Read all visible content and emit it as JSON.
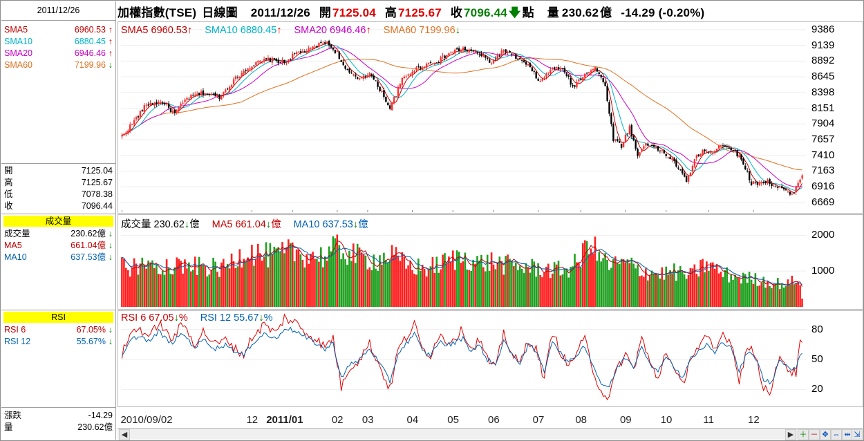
{
  "left_panel": {
    "date": "2011/12/26",
    "sma": [
      {
        "label": "SMA5",
        "value": "6960.53",
        "color": "#c00000",
        "dir": "up"
      },
      {
        "label": "SMA10",
        "value": "6880.45",
        "color": "#00b4c8",
        "dir": "up"
      },
      {
        "label": "SMA20",
        "value": "6946.46",
        "color": "#c800c8",
        "dir": "up"
      },
      {
        "label": "SMA60",
        "value": "7199.96",
        "color": "#e07020",
        "dir": "down"
      }
    ],
    "ohlc": [
      {
        "label": "開",
        "value": "7125.04"
      },
      {
        "label": "高",
        "value": "7125.67"
      },
      {
        "label": "低",
        "value": "7078.38"
      },
      {
        "label": "收",
        "value": "7096.44"
      }
    ],
    "volume_title": "成交量",
    "volume_rows": [
      {
        "label": "成交量",
        "value": "230.62億",
        "color": "#000000"
      },
      {
        "label": "MA5",
        "value": "661.04億",
        "color": "#c00000"
      },
      {
        "label": "MA10",
        "value": "637.53億",
        "color": "#0060b0"
      }
    ],
    "rsi_title": "RSI",
    "rsi_rows": [
      {
        "label": "RSI 6",
        "value": "67.05%",
        "color": "#c00000"
      },
      {
        "label": "RSI 12",
        "value": "55.67%",
        "color": "#0060b0"
      }
    ],
    "bottom_rows": [
      {
        "label": "漲跌",
        "value": "-14.29"
      },
      {
        "label": "量",
        "value": "230.62億"
      }
    ]
  },
  "header": {
    "title": "加權指數(TSE)",
    "period": "日線圖",
    "date": "2011/12/26",
    "open_label": "開",
    "open_value": "7125.04",
    "high_label": "高",
    "high_value": "7125.67",
    "close_label": "收",
    "close_value": "7096.44",
    "unit": "點",
    "vol_label": "量",
    "vol_value": "230.62",
    "vol_unit": "億",
    "change": "-14.29 (-0.20%)"
  },
  "price_legend": [
    {
      "text": "SMA5 6960.53",
      "color": "#c00000",
      "dir": "up"
    },
    {
      "text": "SMA10 6880.45",
      "color": "#00b4c8",
      "dir": "up"
    },
    {
      "text": "SMA20 6946.46",
      "color": "#c800c8",
      "dir": "up"
    },
    {
      "text": "SMA60 7199.96",
      "color": "#e07020",
      "dir": "down"
    }
  ],
  "volume_legend": [
    {
      "text": "成交量 230.62",
      "unit": "億",
      "color": "#000000"
    },
    {
      "text": "MA5 661.04",
      "unit": "億",
      "color": "#c00000"
    },
    {
      "text": "MA10 637.53",
      "unit": "億",
      "color": "#0060b0"
    }
  ],
  "rsi_legend": [
    {
      "text": "RSI 6 67.05",
      "unit": "%",
      "color": "#c00000"
    },
    {
      "text": "RSI 12 55.67",
      "unit": "%",
      "color": "#0060b0"
    }
  ],
  "chart_data": {
    "type": "candlestick",
    "title": "加權指數(TSE) 日線圖",
    "price_axis_ticks": [
      9386,
      9139,
      8892,
      8645,
      8398,
      8151,
      7904,
      7657,
      7410,
      7163,
      6916,
      6669
    ],
    "price_range": [
      6560,
      9450
    ],
    "volume_axis_ticks": [
      2000,
      1000
    ],
    "volume_range": [
      0,
      2200
    ],
    "rsi_axis_ticks": [
      80,
      50,
      20
    ],
    "rsi_range": [
      5,
      95
    ],
    "x_labels": [
      {
        "label": "2010/09/02",
        "idx": 0
      },
      {
        "label": "12",
        "idx": 64
      },
      {
        "label": "2011/01",
        "idx": 84
      },
      {
        "label": "02",
        "idx": 106
      },
      {
        "label": "03",
        "idx": 121
      },
      {
        "label": "04",
        "idx": 143
      },
      {
        "label": "05",
        "idx": 163
      },
      {
        "label": "06",
        "idx": 183
      },
      {
        "label": "07",
        "idx": 205
      },
      {
        "label": "08",
        "idx": 226
      },
      {
        "label": "09",
        "idx": 248
      },
      {
        "label": "10",
        "idx": 268
      },
      {
        "label": "11",
        "idx": 289
      },
      {
        "label": "12",
        "idx": 311
      }
    ],
    "n_days": 336,
    "close_keypoints": [
      [
        0,
        7710
      ],
      [
        6,
        7950
      ],
      [
        12,
        8210
      ],
      [
        20,
        8250
      ],
      [
        26,
        8060
      ],
      [
        32,
        8310
      ],
      [
        40,
        8390
      ],
      [
        48,
        8330
      ],
      [
        56,
        8620
      ],
      [
        62,
        8790
      ],
      [
        66,
        8850
      ],
      [
        72,
        8920
      ],
      [
        80,
        8870
      ],
      [
        86,
        9020
      ],
      [
        92,
        9060
      ],
      [
        100,
        9200
      ],
      [
        106,
        9020
      ],
      [
        110,
        8750
      ],
      [
        116,
        8620
      ],
      [
        122,
        8700
      ],
      [
        128,
        8400
      ],
      [
        132,
        8150
      ],
      [
        138,
        8600
      ],
      [
        144,
        8760
      ],
      [
        150,
        8840
      ],
      [
        156,
        8900
      ],
      [
        162,
        9030
      ],
      [
        168,
        9080
      ],
      [
        176,
        9000
      ],
      [
        182,
        8870
      ],
      [
        188,
        9060
      ],
      [
        194,
        8950
      ],
      [
        200,
        8820
      ],
      [
        206,
        8560
      ],
      [
        212,
        8790
      ],
      [
        218,
        8740
      ],
      [
        222,
        8480
      ],
      [
        228,
        8700
      ],
      [
        233,
        8790
      ],
      [
        238,
        8500
      ],
      [
        242,
        7670
      ],
      [
        246,
        7560
      ],
      [
        250,
        7850
      ],
      [
        254,
        7400
      ],
      [
        258,
        7610
      ],
      [
        262,
        7540
      ],
      [
        266,
        7470
      ],
      [
        272,
        7310
      ],
      [
        278,
        7000
      ],
      [
        282,
        7340
      ],
      [
        286,
        7490
      ],
      [
        290,
        7430
      ],
      [
        294,
        7580
      ],
      [
        298,
        7560
      ],
      [
        302,
        7460
      ],
      [
        306,
        7300
      ],
      [
        310,
        6960
      ],
      [
        314,
        6990
      ],
      [
        318,
        7000
      ],
      [
        322,
        6910
      ],
      [
        326,
        6870
      ],
      [
        330,
        6780
      ],
      [
        333,
        6990
      ],
      [
        335,
        7096
      ]
    ],
    "volume_keypoints": [
      [
        0,
        1150
      ],
      [
        10,
        1180
      ],
      [
        20,
        1250
      ],
      [
        30,
        1180
      ],
      [
        40,
        1150
      ],
      [
        50,
        1100
      ],
      [
        56,
        1400
      ],
      [
        62,
        1650
      ],
      [
        68,
        1500
      ],
      [
        76,
        1450
      ],
      [
        84,
        1600
      ],
      [
        92,
        1500
      ],
      [
        100,
        1450
      ],
      [
        106,
        1700
      ],
      [
        112,
        1550
      ],
      [
        118,
        1400
      ],
      [
        126,
        1350
      ],
      [
        132,
        1500
      ],
      [
        140,
        1200
      ],
      [
        150,
        1100
      ],
      [
        160,
        1300
      ],
      [
        168,
        1450
      ],
      [
        176,
        1250
      ],
      [
        182,
        1300
      ],
      [
        190,
        1200
      ],
      [
        198,
        1150
      ],
      [
        206,
        1100
      ],
      [
        214,
        1050
      ],
      [
        220,
        1100
      ],
      [
        226,
        1350
      ],
      [
        230,
        2000
      ],
      [
        234,
        1500
      ],
      [
        240,
        1200
      ],
      [
        248,
        1250
      ],
      [
        256,
        1050
      ],
      [
        264,
        950
      ],
      [
        272,
        1000
      ],
      [
        280,
        900
      ],
      [
        288,
        1250
      ],
      [
        296,
        950
      ],
      [
        304,
        850
      ],
      [
        312,
        800
      ],
      [
        320,
        700
      ],
      [
        328,
        650
      ],
      [
        333,
        850
      ],
      [
        335,
        231
      ]
    ],
    "rsi6_keypoints": [
      [
        0,
        55
      ],
      [
        4,
        75
      ],
      [
        8,
        82
      ],
      [
        14,
        72
      ],
      [
        18,
        88
      ],
      [
        24,
        70
      ],
      [
        30,
        85
      ],
      [
        36,
        66
      ],
      [
        40,
        78
      ],
      [
        46,
        65
      ],
      [
        52,
        70
      ],
      [
        56,
        60
      ],
      [
        60,
        55
      ],
      [
        64,
        72
      ],
      [
        70,
        85
      ],
      [
        76,
        76
      ],
      [
        80,
        92
      ],
      [
        86,
        86
      ],
      [
        90,
        78
      ],
      [
        96,
        70
      ],
      [
        100,
        62
      ],
      [
        104,
        72
      ],
      [
        108,
        22
      ],
      [
        112,
        42
      ],
      [
        116,
        48
      ],
      [
        122,
        66
      ],
      [
        128,
        38
      ],
      [
        132,
        20
      ],
      [
        136,
        60
      ],
      [
        140,
        72
      ],
      [
        144,
        85
      ],
      [
        148,
        60
      ],
      [
        152,
        55
      ],
      [
        156,
        75
      ],
      [
        160,
        68
      ],
      [
        164,
        72
      ],
      [
        168,
        80
      ],
      [
        172,
        60
      ],
      [
        176,
        70
      ],
      [
        180,
        50
      ],
      [
        184,
        40
      ],
      [
        188,
        78
      ],
      [
        192,
        55
      ],
      [
        196,
        45
      ],
      [
        200,
        70
      ],
      [
        204,
        60
      ],
      [
        208,
        30
      ],
      [
        212,
        78
      ],
      [
        216,
        58
      ],
      [
        220,
        42
      ],
      [
        224,
        58
      ],
      [
        228,
        70
      ],
      [
        232,
        40
      ],
      [
        236,
        18
      ],
      [
        240,
        12
      ],
      [
        244,
        42
      ],
      [
        248,
        55
      ],
      [
        252,
        40
      ],
      [
        256,
        72
      ],
      [
        260,
        46
      ],
      [
        264,
        30
      ],
      [
        268,
        60
      ],
      [
        272,
        38
      ],
      [
        276,
        24
      ],
      [
        280,
        52
      ],
      [
        284,
        62
      ],
      [
        288,
        72
      ],
      [
        292,
        58
      ],
      [
        296,
        76
      ],
      [
        300,
        68
      ],
      [
        304,
        30
      ],
      [
        308,
        62
      ],
      [
        312,
        55
      ],
      [
        316,
        22
      ],
      [
        320,
        18
      ],
      [
        324,
        56
      ],
      [
        328,
        40
      ],
      [
        332,
        36
      ],
      [
        334,
        66
      ],
      [
        335,
        67
      ]
    ],
    "rsi12_keypoints": [
      [
        0,
        52
      ],
      [
        4,
        68
      ],
      [
        8,
        74
      ],
      [
        14,
        68
      ],
      [
        18,
        78
      ],
      [
        24,
        66
      ],
      [
        30,
        76
      ],
      [
        36,
        62
      ],
      [
        40,
        70
      ],
      [
        46,
        61
      ],
      [
        52,
        65
      ],
      [
        56,
        57
      ],
      [
        60,
        54
      ],
      [
        64,
        66
      ],
      [
        70,
        76
      ],
      [
        76,
        70
      ],
      [
        80,
        82
      ],
      [
        86,
        78
      ],
      [
        90,
        72
      ],
      [
        96,
        66
      ],
      [
        100,
        60
      ],
      [
        104,
        66
      ],
      [
        108,
        32
      ],
      [
        112,
        44
      ],
      [
        116,
        48
      ],
      [
        122,
        61
      ],
      [
        128,
        42
      ],
      [
        132,
        28
      ],
      [
        136,
        56
      ],
      [
        140,
        66
      ],
      [
        144,
        76
      ],
      [
        148,
        58
      ],
      [
        152,
        54
      ],
      [
        156,
        68
      ],
      [
        160,
        64
      ],
      [
        164,
        67
      ],
      [
        168,
        72
      ],
      [
        172,
        58
      ],
      [
        176,
        64
      ],
      [
        180,
        50
      ],
      [
        184,
        44
      ],
      [
        188,
        70
      ],
      [
        192,
        54
      ],
      [
        196,
        47
      ],
      [
        200,
        64
      ],
      [
        204,
        58
      ],
      [
        208,
        38
      ],
      [
        212,
        70
      ],
      [
        216,
        56
      ],
      [
        220,
        46
      ],
      [
        224,
        55
      ],
      [
        228,
        64
      ],
      [
        232,
        44
      ],
      [
        236,
        26
      ],
      [
        240,
        22
      ],
      [
        244,
        42
      ],
      [
        248,
        52
      ],
      [
        252,
        43
      ],
      [
        256,
        64
      ],
      [
        260,
        47
      ],
      [
        264,
        36
      ],
      [
        268,
        55
      ],
      [
        272,
        42
      ],
      [
        276,
        32
      ],
      [
        280,
        50
      ],
      [
        284,
        58
      ],
      [
        288,
        65
      ],
      [
        292,
        56
      ],
      [
        296,
        68
      ],
      [
        300,
        63
      ],
      [
        304,
        38
      ],
      [
        308,
        57
      ],
      [
        312,
        52
      ],
      [
        316,
        30
      ],
      [
        320,
        26
      ],
      [
        324,
        52
      ],
      [
        328,
        42
      ],
      [
        332,
        40
      ],
      [
        334,
        54
      ],
      [
        335,
        56
      ]
    ]
  }
}
